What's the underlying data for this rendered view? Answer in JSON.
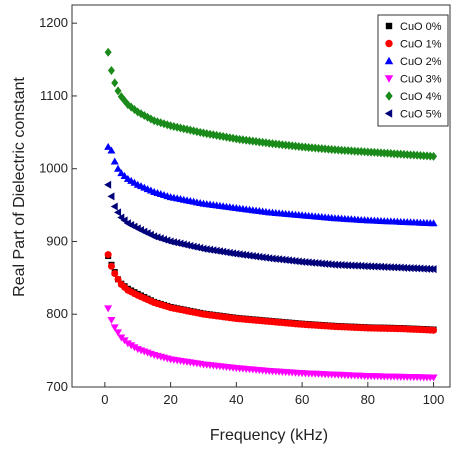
{
  "chart_data": {
    "type": "scatter",
    "title": "",
    "xlabel": "Frequency (kHz)",
    "ylabel": "Real Part of Dielectric constant",
    "xlim": [
      -10,
      105
    ],
    "ylim": [
      700,
      1225
    ],
    "x_ticks": [
      0,
      20,
      40,
      60,
      80,
      100
    ],
    "y_ticks": [
      700,
      800,
      900,
      1000,
      1100,
      1200
    ],
    "grid": false,
    "legend_position": "top-right",
    "x": [
      1,
      2,
      3,
      4,
      5,
      7,
      10,
      15,
      20,
      30,
      40,
      50,
      60,
      70,
      80,
      90,
      100
    ],
    "series": [
      {
        "name": "CuO 0%",
        "marker": "square",
        "color": "#000000",
        "values": [
          880,
          868,
          858,
          848,
          842,
          835,
          828,
          817,
          810,
          801,
          795,
          791,
          787,
          784,
          782,
          781,
          779
        ]
      },
      {
        "name": "CuO 1%",
        "marker": "circle",
        "color": "#ff0000",
        "values": [
          882,
          866,
          856,
          848,
          841,
          833,
          826,
          816,
          809,
          800,
          794,
          790,
          786,
          783,
          781,
          780,
          778
        ]
      },
      {
        "name": "CuO 2%",
        "marker": "triangle-up",
        "color": "#0000ff",
        "values": [
          1030,
          1025,
          1010,
          1000,
          994,
          986,
          978,
          968,
          961,
          952,
          946,
          940,
          936,
          932,
          929,
          927,
          925
        ]
      },
      {
        "name": "CuO 3%",
        "marker": "triangle-down",
        "color": "#ff00ff",
        "values": [
          808,
          792,
          782,
          775,
          768,
          760,
          752,
          744,
          738,
          731,
          726,
          722,
          719,
          717,
          715,
          714,
          713
        ]
      },
      {
        "name": "CuO 4%",
        "marker": "diamond",
        "color": "#1a8a1a",
        "values": [
          1160,
          1135,
          1118,
          1107,
          1099,
          1088,
          1078,
          1066,
          1059,
          1049,
          1041,
          1035,
          1030,
          1026,
          1023,
          1020,
          1017
        ]
      },
      {
        "name": "CuO 5%",
        "marker": "triangle-left",
        "color": "#00007a",
        "values": [
          978,
          962,
          948,
          940,
          933,
          925,
          918,
          907,
          900,
          890,
          883,
          877,
          872,
          868,
          866,
          864,
          862
        ]
      }
    ]
  }
}
